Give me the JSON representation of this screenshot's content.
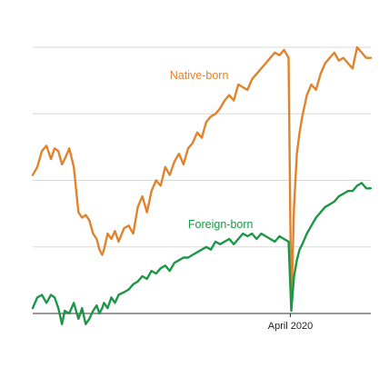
{
  "chart_data": {
    "type": "line",
    "title": "",
    "xlabel": "",
    "ylabel": "",
    "x": [
      0,
      5,
      10,
      15,
      20,
      24,
      28,
      32,
      35,
      40,
      45,
      50,
      54,
      58,
      62,
      66,
      70,
      73,
      76,
      78,
      82,
      86,
      90,
      94,
      100,
      105,
      110,
      115,
      120,
      125,
      130,
      135,
      140,
      145,
      150,
      155,
      160,
      165,
      170,
      175,
      180,
      185,
      190,
      195,
      200,
      205,
      210,
      215,
      220,
      225,
      230,
      235,
      240,
      245,
      250,
      255,
      260,
      265,
      270,
      275,
      280,
      283,
      286,
      289,
      292,
      295,
      300,
      305,
      310,
      315,
      320,
      325,
      330,
      335,
      340,
      345,
      350,
      355,
      360,
      365,
      370
    ],
    "x_ticks": [
      {
        "x": 282,
        "label": "April 2020"
      }
    ],
    "ylim": [
      0,
      100
    ],
    "gridlines": [
      0,
      25,
      50,
      75,
      100
    ],
    "series": [
      {
        "name": "Native-born",
        "color": "#e0832e",
        "values": [
          52,
          55,
          61,
          63,
          58,
          62,
          61,
          56,
          58,
          62,
          55,
          38,
          36,
          37,
          35,
          30,
          28,
          24,
          22,
          24,
          30,
          28,
          31,
          27,
          32,
          33,
          30,
          40,
          44,
          38,
          46,
          50,
          48,
          55,
          52,
          57,
          60,
          56,
          62,
          64,
          68,
          66,
          72,
          74,
          75,
          77,
          80,
          82,
          80,
          86,
          85,
          84,
          88,
          90,
          92,
          94,
          96,
          98,
          97,
          99,
          96,
          2,
          40,
          60,
          68,
          74,
          82,
          86,
          84,
          90,
          94,
          96,
          98,
          95,
          96,
          94,
          92,
          100,
          98,
          96,
          96
        ]
      },
      {
        "name": "Foreign-born",
        "color": "#1e9648",
        "values": [
          2,
          6,
          7,
          4,
          7,
          6,
          2,
          -4,
          1,
          0,
          4,
          -2,
          2,
          -4,
          -2,
          1,
          3,
          0,
          2,
          4,
          2,
          6,
          4,
          7,
          8,
          9,
          11,
          12,
          14,
          13,
          16,
          15,
          17,
          18,
          16,
          19,
          20,
          21,
          21,
          22,
          23,
          24,
          25,
          24,
          27,
          26,
          27,
          28,
          26,
          28,
          30,
          29,
          30,
          28,
          30,
          29,
          28,
          27,
          29,
          28,
          27,
          1,
          14,
          20,
          24,
          26,
          30,
          33,
          36,
          38,
          40,
          41,
          42,
          44,
          45,
          46,
          46,
          48,
          49,
          47,
          47
        ]
      }
    ],
    "annotations": [
      {
        "series": "Native-born",
        "text": "Native-born",
        "x": 150,
        "y": 88
      },
      {
        "series": "Foreign-born",
        "text": "Foreign-born",
        "x": 170,
        "y": 32
      }
    ]
  }
}
